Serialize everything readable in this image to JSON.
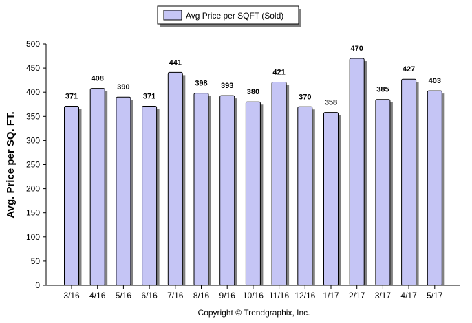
{
  "chart_data": {
    "type": "bar",
    "categories": [
      "3/16",
      "4/16",
      "5/16",
      "6/16",
      "7/16",
      "8/16",
      "9/16",
      "10/16",
      "11/16",
      "12/16",
      "1/17",
      "2/17",
      "3/17",
      "4/17",
      "5/17"
    ],
    "series": [
      {
        "name": "Avg Price per SQFT (Sold)",
        "values": [
          371,
          408,
          390,
          371,
          441,
          398,
          393,
          380,
          421,
          370,
          358,
          470,
          385,
          427,
          403
        ]
      }
    ],
    "data_labels": [
      "371",
      "408",
      "390",
      "371",
      "441",
      "398",
      "393",
      "380",
      "421",
      "370",
      "358",
      "470",
      "385",
      "427",
      "403"
    ],
    "ylabel": "Avg. Price per SQ. FT.",
    "xlabel": "",
    "ylim": [
      0,
      500
    ],
    "yticks": [
      0,
      50,
      100,
      150,
      200,
      250,
      300,
      350,
      400,
      450,
      500
    ],
    "grid": false,
    "legend_position": "top-center",
    "colors": {
      "bar_fill": "#c5c5f5",
      "bar_stroke": "#000000",
      "shadow": "#808080"
    }
  },
  "footer": {
    "copyright": "Copyright © Trendgraphix, Inc."
  }
}
